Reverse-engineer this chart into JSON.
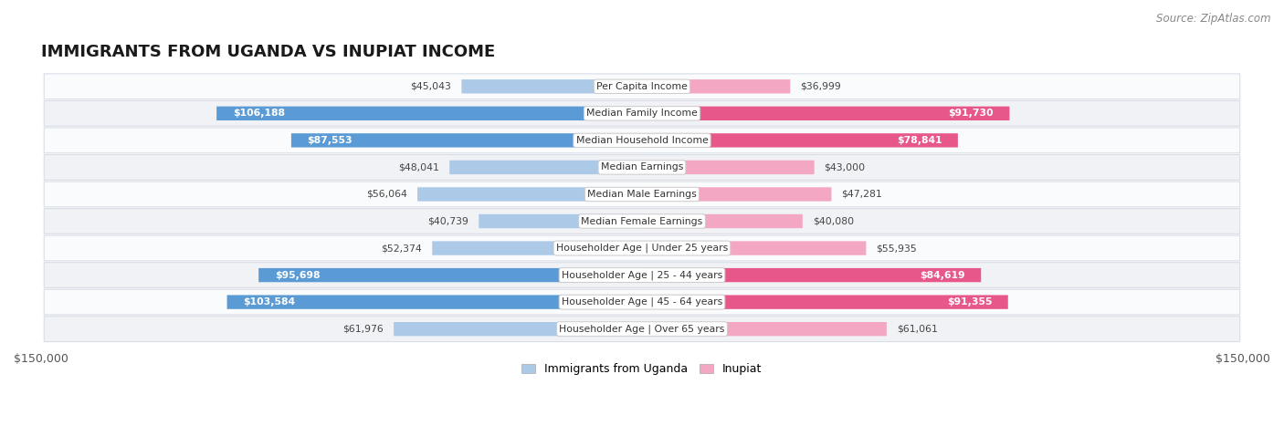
{
  "title": "IMMIGRANTS FROM UGANDA VS INUPIAT INCOME",
  "source": "Source: ZipAtlas.com",
  "categories": [
    "Per Capita Income",
    "Median Family Income",
    "Median Household Income",
    "Median Earnings",
    "Median Male Earnings",
    "Median Female Earnings",
    "Householder Age | Under 25 years",
    "Householder Age | 25 - 44 years",
    "Householder Age | 45 - 64 years",
    "Householder Age | Over 65 years"
  ],
  "uganda_values": [
    45043,
    106188,
    87553,
    48041,
    56064,
    40739,
    52374,
    95698,
    103584,
    61976
  ],
  "inupiat_values": [
    36999,
    91730,
    78841,
    43000,
    47281,
    40080,
    55935,
    84619,
    91355,
    61061
  ],
  "uganda_labels": [
    "$45,043",
    "$106,188",
    "$87,553",
    "$48,041",
    "$56,064",
    "$40,739",
    "$52,374",
    "$95,698",
    "$103,584",
    "$61,976"
  ],
  "inupiat_labels": [
    "$36,999",
    "$91,730",
    "$78,841",
    "$43,000",
    "$47,281",
    "$40,080",
    "$55,935",
    "$84,619",
    "$91,355",
    "$61,061"
  ],
  "uganda_light_color": "#adc9e8",
  "uganda_dark_color": "#5b9bd5",
  "inupiat_light_color": "#f4a7c3",
  "inupiat_dark_color": "#e8578a",
  "uganda_inside_threshold": 70000,
  "inupiat_inside_threshold": 70000,
  "max_value": 150000,
  "bar_height": 0.52,
  "row_bg_odd": "#f0f2f5",
  "row_bg_even": "#fafbfc"
}
